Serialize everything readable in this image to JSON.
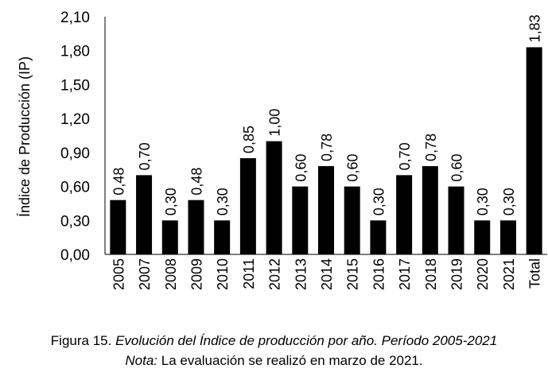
{
  "chart_data": {
    "type": "bar",
    "title": "",
    "xlabel": "",
    "ylabel": "Índice de Producción (IP)",
    "ylim": [
      0,
      2.1
    ],
    "yticks": [
      "0,00",
      "0,30",
      "0,60",
      "0,90",
      "1,20",
      "1,50",
      "1,80",
      "2,10"
    ],
    "ytick_values": [
      0,
      0.3,
      0.6,
      0.9,
      1.2,
      1.5,
      1.8,
      2.1
    ],
    "categories": [
      "2005",
      "2007",
      "2008",
      "2009",
      "2010",
      "2011",
      "2012",
      "2013",
      "2014",
      "2015",
      "2016",
      "2017",
      "2018",
      "2019",
      "2020",
      "2021",
      "Total"
    ],
    "values": [
      0.48,
      0.7,
      0.3,
      0.48,
      0.3,
      0.85,
      1.0,
      0.6,
      0.78,
      0.6,
      0.3,
      0.7,
      0.78,
      0.6,
      0.3,
      0.3,
      1.83
    ],
    "data_labels": [
      "0,48",
      "0,70",
      "0,30",
      "0,48",
      "0,30",
      "0,85",
      "1,00",
      "0,60",
      "0,78",
      "0,60",
      "0,30",
      "0,70",
      "0,78",
      "0,60",
      "0,30",
      "0,30",
      "1,83"
    ],
    "grid": false,
    "bar_color": "#000000"
  },
  "caption": {
    "figure_label": "Figura 15.",
    "figure_title": "Evolución del Índice de producción por año. Período 2005-2021",
    "note_label": "Nota:",
    "note_text": "La evaluación se realizó en marzo de 2021."
  }
}
